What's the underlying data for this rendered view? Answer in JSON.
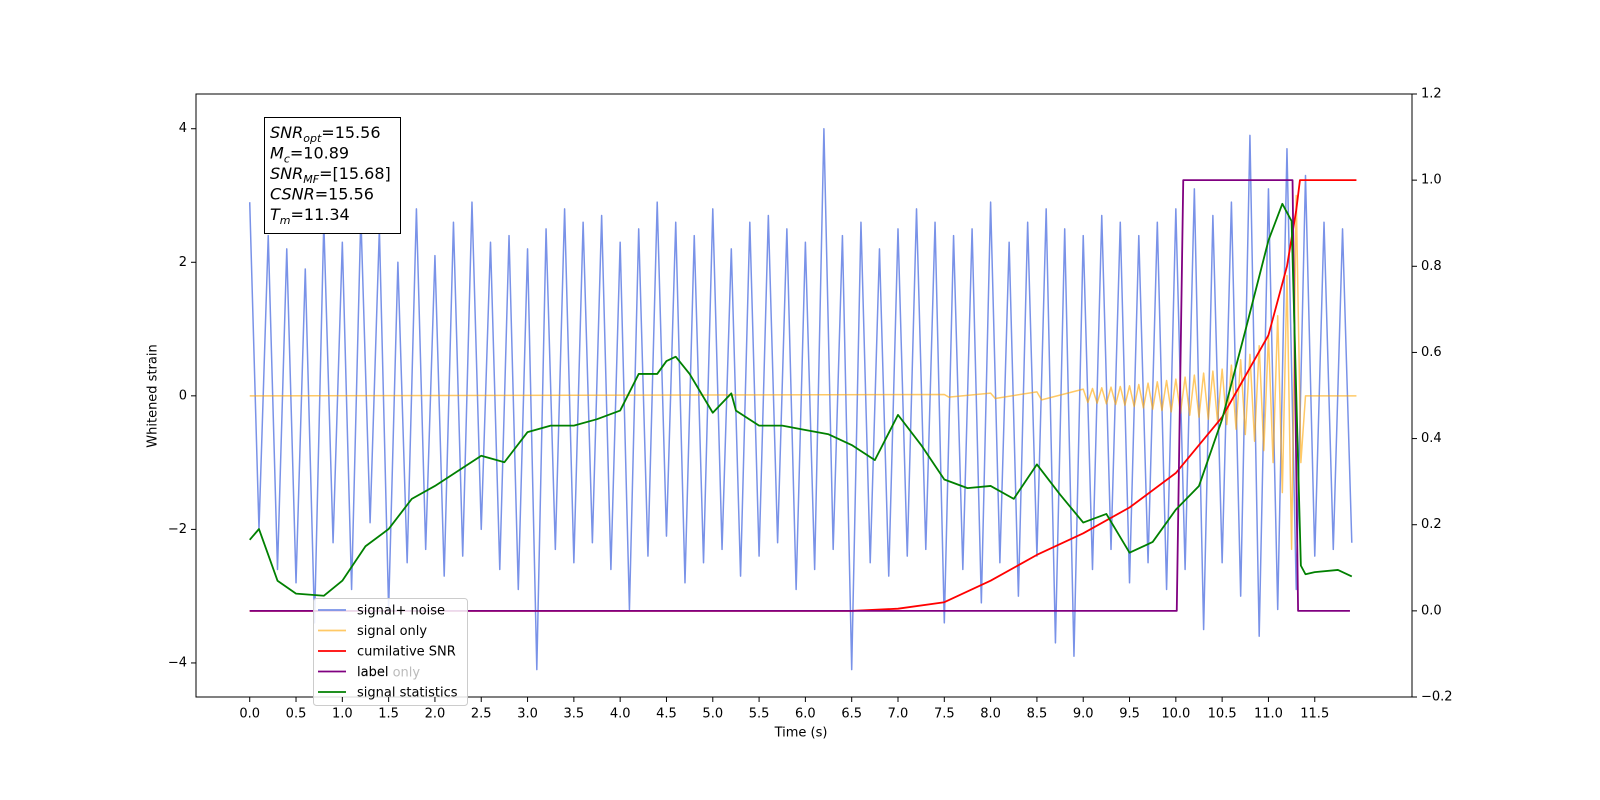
{
  "chart_data": {
    "type": "line",
    "xlabel": "Time (s)",
    "ylabel": "Whitened strain",
    "xlim": [
      -0.58,
      12.55
    ],
    "ylim": [
      -4.51,
      4.52
    ],
    "y2lim": [
      -0.2,
      1.2
    ],
    "xticks": [
      {
        "value": 0,
        "label": "0.0"
      },
      0.5,
      {
        "value": 1,
        "label": "1.0"
      },
      1.5,
      {
        "value": 2,
        "label": "2.0"
      },
      2.5,
      {
        "value": 3,
        "label": "3.0"
      },
      3.5,
      {
        "value": 4,
        "label": "4.0"
      },
      4.5,
      {
        "value": 5,
        "label": "5.0"
      },
      5.5,
      {
        "value": 6,
        "label": "6.0"
      },
      6.5,
      {
        "value": 7,
        "label": "7.0"
      },
      7.5,
      {
        "value": 8,
        "label": "8.0"
      },
      8.5,
      {
        "value": 9,
        "label": "9.0"
      },
      9.5,
      {
        "value": 10,
        "label": "10.0"
      },
      10.5,
      {
        "value": 11,
        "label": "11.0"
      },
      11.5
    ],
    "yticks": [
      {
        "value": -4,
        "label": "−4"
      },
      {
        "value": -2,
        "label": "−2"
      },
      0,
      2,
      4
    ],
    "y2ticks": [
      {
        "value": -0.2,
        "label": "−0.2"
      },
      {
        "value": 0,
        "label": "0.0"
      },
      0.2,
      0.4,
      0.6,
      0.8,
      {
        "value": 1,
        "label": "1.0"
      },
      1.2
    ],
    "series": [
      {
        "name": "signal+ noise",
        "color": "#6a86e5",
        "x": [
          0.0,
          0.1,
          0.2,
          0.3,
          0.4,
          0.5,
          0.6,
          0.7,
          0.8,
          0.9,
          1.0,
          1.1,
          1.2,
          1.3,
          1.4,
          1.5,
          1.6,
          1.7,
          1.8,
          1.9,
          2.0,
          2.1,
          2.2,
          2.3,
          2.4,
          2.5,
          2.6,
          2.7,
          2.8,
          2.9,
          3.0,
          3.1,
          3.2,
          3.3,
          3.4,
          3.5,
          3.6,
          3.7,
          3.8,
          3.9,
          4.0,
          4.1,
          4.2,
          4.3,
          4.4,
          4.5,
          4.6,
          4.7,
          4.8,
          4.9,
          5.0,
          5.1,
          5.2,
          5.3,
          5.4,
          5.5,
          5.6,
          5.7,
          5.8,
          5.9,
          6.0,
          6.1,
          6.2,
          6.3,
          6.4,
          6.5,
          6.6,
          6.7,
          6.8,
          6.9,
          7.0,
          7.1,
          7.2,
          7.3,
          7.4,
          7.5,
          7.6,
          7.7,
          7.8,
          7.9,
          8.0,
          8.1,
          8.2,
          8.3,
          8.4,
          8.5,
          8.6,
          8.7,
          8.8,
          8.9,
          9.0,
          9.1,
          9.2,
          9.3,
          9.4,
          9.5,
          9.6,
          9.7,
          9.8,
          9.9,
          10.0,
          10.1,
          10.2,
          10.3,
          10.4,
          10.5,
          10.6,
          10.7,
          10.8,
          10.9,
          11.0,
          11.1,
          11.2,
          11.3,
          11.4,
          11.5,
          11.6,
          11.7,
          11.8,
          11.9
        ],
        "values": [
          2.9,
          -2.0,
          2.4,
          -2.6,
          2.2,
          -2.8,
          1.9,
          -3.4,
          2.6,
          -2.2,
          2.3,
          -2.9,
          2.7,
          -1.9,
          2.5,
          -3.2,
          2.0,
          -2.5,
          2.8,
          -2.3,
          2.1,
          -2.7,
          2.6,
          -2.4,
          2.9,
          -2.0,
          2.3,
          -2.6,
          2.4,
          -2.9,
          2.2,
          -4.1,
          2.5,
          -2.3,
          2.8,
          -2.5,
          2.6,
          -2.2,
          2.7,
          -2.6,
          2.3,
          -3.2,
          2.5,
          -2.4,
          2.9,
          -2.1,
          2.6,
          -2.8,
          2.4,
          -2.5,
          2.8,
          -2.3,
          2.2,
          -2.7,
          2.6,
          -2.4,
          2.7,
          -2.2,
          2.5,
          -2.9,
          2.3,
          -2.6,
          4.0,
          -2.3,
          2.4,
          -4.1,
          2.6,
          -2.5,
          2.2,
          -2.7,
          2.5,
          -2.4,
          2.8,
          -2.3,
          2.6,
          -3.4,
          2.4,
          -2.6,
          2.5,
          -3.1,
          2.9,
          -2.5,
          2.3,
          -3.0,
          2.6,
          -2.4,
          2.8,
          -3.7,
          2.5,
          -3.9,
          2.4,
          -2.6,
          2.7,
          -2.3,
          2.6,
          -2.8,
          2.4,
          -2.5,
          2.6,
          -2.9,
          2.8,
          -2.6,
          3.1,
          -3.5,
          2.7,
          -2.5,
          2.9,
          -3.0,
          3.9,
          -3.6,
          3.1,
          -3.2,
          3.7,
          -2.9,
          3.3,
          -2.4,
          2.6,
          -2.3,
          2.5,
          -2.2
        ]
      },
      {
        "name": "signal only",
        "color": "#ffa500",
        "x": [
          0.0,
          7.5,
          7.55,
          8.0,
          8.05,
          8.5,
          8.55,
          9.0,
          9.05,
          9.1,
          9.15,
          9.2,
          9.25,
          9.3,
          9.35,
          9.4,
          9.45,
          9.5,
          9.55,
          9.6,
          9.65,
          9.7,
          9.75,
          9.8,
          9.85,
          9.9,
          9.95,
          10.0,
          10.05,
          10.1,
          10.15,
          10.2,
          10.25,
          10.3,
          10.35,
          10.4,
          10.45,
          10.5,
          10.55,
          10.6,
          10.65,
          10.7,
          10.75,
          10.8,
          10.85,
          10.9,
          10.95,
          11.0,
          11.05,
          11.1,
          11.15,
          11.2,
          11.25,
          11.3,
          11.35,
          11.4,
          11.95
        ],
        "values": [
          0,
          0.02,
          -0.02,
          0.04,
          -0.04,
          0.06,
          -0.06,
          0.1,
          -0.1,
          0.11,
          -0.11,
          0.12,
          -0.12,
          0.13,
          -0.13,
          0.14,
          -0.14,
          0.15,
          -0.16,
          0.17,
          -0.18,
          0.19,
          -0.2,
          0.21,
          -0.22,
          0.23,
          -0.24,
          0.25,
          -0.26,
          0.28,
          -0.29,
          0.31,
          -0.32,
          0.34,
          -0.35,
          0.37,
          -0.38,
          0.4,
          -0.43,
          0.46,
          -0.5,
          0.54,
          -0.58,
          0.62,
          -0.68,
          0.75,
          -0.82,
          0.9,
          -1.0,
          1.2,
          -1.45,
          1.8,
          -2.3,
          3.0,
          -1.0,
          0,
          0
        ]
      },
      {
        "name": "cumilative SNR",
        "color": "#ff0000",
        "axis": "y2",
        "x": [
          0.0,
          6.5,
          7.0,
          7.5,
          8.0,
          8.5,
          9.0,
          9.5,
          10.0,
          10.5,
          11.0,
          11.2,
          11.3,
          11.34,
          11.95
        ],
        "values": [
          0,
          0,
          0.005,
          0.02,
          0.07,
          0.13,
          0.18,
          0.24,
          0.32,
          0.45,
          0.64,
          0.8,
          0.93,
          1.0,
          1.0
        ]
      },
      {
        "name": "label",
        "color": "#800080",
        "axis": "y2",
        "x": [
          0.0,
          10.01,
          10.08,
          11.26,
          11.32,
          11.88
        ],
        "values": [
          0,
          0,
          1,
          1,
          0,
          0
        ]
      },
      {
        "name": "signal statistics",
        "color": "#008000",
        "axis": "y2",
        "x": [
          0.0,
          0.1,
          0.2,
          0.3,
          0.5,
          0.8,
          1.0,
          1.25,
          1.5,
          1.75,
          2.0,
          2.25,
          2.5,
          2.75,
          3.0,
          3.25,
          3.5,
          3.75,
          4.0,
          4.2,
          4.4,
          4.5,
          4.6,
          4.75,
          5.0,
          5.2,
          5.25,
          5.5,
          5.75,
          6.0,
          6.25,
          6.5,
          6.75,
          7.0,
          7.25,
          7.5,
          7.75,
          8.0,
          8.25,
          8.5,
          8.75,
          9.0,
          9.25,
          9.5,
          9.75,
          10.0,
          10.25,
          10.5,
          10.75,
          11.0,
          11.15,
          11.25,
          11.35,
          11.4,
          11.5,
          11.75,
          11.9
        ],
        "values": [
          0.165,
          0.19,
          0.13,
          0.07,
          0.04,
          0.035,
          0.07,
          0.15,
          0.19,
          0.26,
          0.29,
          0.325,
          0.36,
          0.345,
          0.415,
          0.43,
          0.43,
          0.445,
          0.465,
          0.55,
          0.55,
          0.58,
          0.59,
          0.55,
          0.46,
          0.505,
          0.465,
          0.43,
          0.43,
          0.42,
          0.41,
          0.385,
          0.35,
          0.455,
          0.385,
          0.305,
          0.285,
          0.29,
          0.26,
          0.34,
          0.27,
          0.205,
          0.225,
          0.135,
          0.16,
          0.235,
          0.29,
          0.445,
          0.65,
          0.86,
          0.945,
          0.905,
          0.105,
          0.085,
          0.09,
          0.095,
          0.08
        ]
      }
    ],
    "overlapped_legend_text": "label only",
    "annotation": [
      {
        "symbol": "SNR",
        "sub": "opt",
        "text": "=15.56"
      },
      {
        "symbol": "M",
        "sub": "c",
        "text": "=10.89"
      },
      {
        "symbol": "SNR",
        "sub": "MF",
        "text": "=[15.68]"
      },
      {
        "symbol": "CSNR",
        "text": "=15.56"
      },
      {
        "symbol": "T",
        "sub": "m",
        "text": "=11.34"
      }
    ],
    "legend": "lower left"
  }
}
